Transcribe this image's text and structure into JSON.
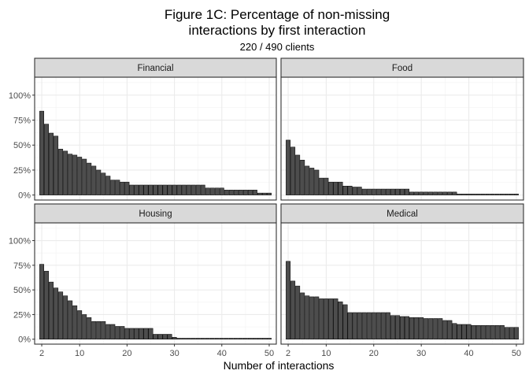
{
  "chart_data": {
    "type": "bar",
    "title_line1": "Figure 1C: Percentage of non-missing",
    "title_line2": "interactions by first interaction",
    "subtitle": "220 / 490 clients",
    "xlabel": "Number of interactions",
    "ylabel": "",
    "x": [
      2,
      3,
      4,
      5,
      6,
      7,
      8,
      9,
      10,
      11,
      12,
      13,
      14,
      15,
      16,
      17,
      18,
      19,
      20,
      21,
      22,
      23,
      24,
      25,
      26,
      27,
      28,
      29,
      30,
      31,
      32,
      33,
      34,
      35,
      36,
      37,
      38,
      39,
      40,
      41,
      42,
      43,
      44,
      45,
      46,
      47,
      48,
      49,
      50
    ],
    "xlim": [
      0.5,
      51.5
    ],
    "ylim": [
      -0.05,
      1.18
    ],
    "x_ticks": [
      2,
      10,
      20,
      30,
      40,
      50
    ],
    "y_ticks": [
      0,
      0.25,
      0.5,
      0.75,
      1.0
    ],
    "y_tick_labels": [
      "0%",
      "25%",
      "50%",
      "75%",
      "100%"
    ],
    "bar_fill": "#4d4d4d",
    "bar_outline": "#000000",
    "strip_fill": "#d9d9d9",
    "grid": true,
    "facets": [
      {
        "name": "Financial",
        "values": [
          0.84,
          0.71,
          0.62,
          0.59,
          0.46,
          0.44,
          0.41,
          0.4,
          0.38,
          0.36,
          0.32,
          0.29,
          0.25,
          0.22,
          0.19,
          0.15,
          0.15,
          0.13,
          0.13,
          0.1,
          0.1,
          0.1,
          0.1,
          0.1,
          0.1,
          0.1,
          0.1,
          0.1,
          0.1,
          0.1,
          0.1,
          0.1,
          0.1,
          0.1,
          0.1,
          0.07,
          0.07,
          0.07,
          0.07,
          0.05,
          0.05,
          0.05,
          0.05,
          0.05,
          0.05,
          0.05,
          0.02,
          0.02,
          0.02
        ]
      },
      {
        "name": "Food",
        "values": [
          0.55,
          0.48,
          0.4,
          0.35,
          0.29,
          0.27,
          0.25,
          0.17,
          0.17,
          0.13,
          0.13,
          0.13,
          0.09,
          0.09,
          0.08,
          0.08,
          0.06,
          0.06,
          0.06,
          0.06,
          0.06,
          0.06,
          0.06,
          0.06,
          0.06,
          0.06,
          0.03,
          0.03,
          0.03,
          0.03,
          0.03,
          0.03,
          0.03,
          0.03,
          0.03,
          0.03,
          0.01,
          0.01,
          0.01,
          0.01,
          0.01,
          0.01,
          0.01,
          0.01,
          0.01,
          0.01,
          0.01,
          0.01,
          0.01
        ]
      },
      {
        "name": "Housing",
        "values": [
          0.76,
          0.69,
          0.58,
          0.52,
          0.48,
          0.44,
          0.39,
          0.34,
          0.29,
          0.25,
          0.22,
          0.18,
          0.18,
          0.18,
          0.15,
          0.15,
          0.13,
          0.13,
          0.11,
          0.11,
          0.11,
          0.11,
          0.11,
          0.11,
          0.05,
          0.05,
          0.05,
          0.05,
          0.02,
          0.01,
          0.01,
          0.01,
          0.01,
          0.01,
          0.01,
          0.01,
          0.01,
          0.01,
          0.01,
          0.01,
          0.01,
          0.01,
          0.01,
          0.01,
          0.01,
          0.01,
          0.01,
          0.01,
          0.01
        ]
      },
      {
        "name": "Medical",
        "values": [
          0.79,
          0.59,
          0.54,
          0.47,
          0.44,
          0.43,
          0.43,
          0.41,
          0.41,
          0.41,
          0.41,
          0.38,
          0.35,
          0.27,
          0.27,
          0.27,
          0.27,
          0.27,
          0.27,
          0.27,
          0.27,
          0.27,
          0.24,
          0.24,
          0.23,
          0.23,
          0.22,
          0.22,
          0.22,
          0.21,
          0.21,
          0.21,
          0.21,
          0.19,
          0.19,
          0.16,
          0.15,
          0.15,
          0.15,
          0.14,
          0.14,
          0.14,
          0.14,
          0.14,
          0.14,
          0.14,
          0.12,
          0.12,
          0.12
        ]
      }
    ]
  }
}
